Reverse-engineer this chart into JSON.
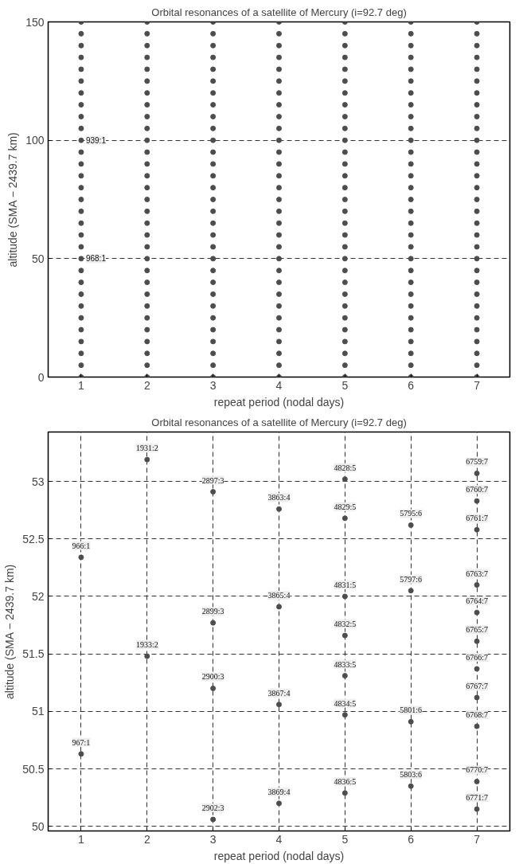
{
  "chart_data": [
    {
      "type": "scatter",
      "title": "Orbital resonances of a satellite of Mercury (i=92.7 deg)",
      "xlabel": "repeat period (nodal days)",
      "ylabel": "altitude (SMA − 2439.7 km)",
      "xlim": [
        0.5,
        7.5
      ],
      "ylim": [
        0,
        150
      ],
      "xticks": [
        1,
        2,
        3,
        4,
        5,
        6,
        7
      ],
      "yticks": [
        0,
        50,
        100,
        150
      ],
      "grid": "y",
      "marker": "circle",
      "series": [
        {
          "color": "#4d4d4d",
          "x": [
            1,
            1,
            1,
            1,
            1,
            1,
            1,
            1,
            1,
            1,
            1,
            1,
            1,
            1,
            1,
            1,
            1,
            1,
            1,
            1,
            1,
            1,
            1,
            1,
            1,
            1,
            1,
            1,
            1,
            1,
            1
          ],
          "values": [
            0,
            5,
            10,
            15,
            20,
            25,
            30,
            35,
            40,
            45,
            50,
            55,
            60,
            65,
            70,
            75,
            80,
            85,
            90,
            95,
            100,
            105,
            110,
            115,
            120,
            125,
            130,
            135,
            140,
            145,
            150
          ]
        },
        {
          "color": "#4d4d4d",
          "x": [
            2,
            2,
            2,
            2,
            2,
            2,
            2,
            2,
            2,
            2,
            2,
            2,
            2,
            2,
            2,
            2,
            2,
            2,
            2,
            2,
            2,
            2,
            2,
            2,
            2,
            2,
            2,
            2,
            2,
            2,
            2
          ],
          "values": [
            0,
            5,
            10,
            15,
            20,
            25,
            30,
            35,
            40,
            45,
            50,
            55,
            60,
            65,
            70,
            75,
            80,
            85,
            90,
            95,
            100,
            105,
            110,
            115,
            120,
            125,
            130,
            135,
            140,
            145,
            150
          ]
        },
        {
          "color": "#4d4d4d",
          "x": [
            3,
            3,
            3,
            3,
            3,
            3,
            3,
            3,
            3,
            3,
            3,
            3,
            3,
            3,
            3,
            3,
            3,
            3,
            3,
            3,
            3,
            3,
            3,
            3,
            3,
            3,
            3,
            3,
            3,
            3,
            3
          ],
          "values": [
            0,
            5,
            10,
            15,
            20,
            25,
            30,
            35,
            40,
            45,
            50,
            55,
            60,
            65,
            70,
            75,
            80,
            85,
            90,
            95,
            100,
            105,
            110,
            115,
            120,
            125,
            130,
            135,
            140,
            145,
            150
          ]
        },
        {
          "color": "#4d4d4d",
          "x": [
            4,
            4,
            4,
            4,
            4,
            4,
            4,
            4,
            4,
            4,
            4,
            4,
            4,
            4,
            4,
            4,
            4,
            4,
            4,
            4,
            4,
            4,
            4,
            4,
            4,
            4,
            4,
            4,
            4,
            4,
            4
          ],
          "values": [
            0,
            5,
            10,
            15,
            20,
            25,
            30,
            35,
            40,
            45,
            50,
            55,
            60,
            65,
            70,
            75,
            80,
            85,
            90,
            95,
            100,
            105,
            110,
            115,
            120,
            125,
            130,
            135,
            140,
            145,
            150
          ]
        },
        {
          "color": "#4d4d4d",
          "x": [
            5,
            5,
            5,
            5,
            5,
            5,
            5,
            5,
            5,
            5,
            5,
            5,
            5,
            5,
            5,
            5,
            5,
            5,
            5,
            5,
            5,
            5,
            5,
            5,
            5,
            5,
            5,
            5,
            5,
            5,
            5
          ],
          "values": [
            0,
            5,
            10,
            15,
            20,
            25,
            30,
            35,
            40,
            45,
            50,
            55,
            60,
            65,
            70,
            75,
            80,
            85,
            90,
            95,
            100,
            105,
            110,
            115,
            120,
            125,
            130,
            135,
            140,
            145,
            150
          ]
        },
        {
          "color": "#4d4d4d",
          "x": [
            6,
            6,
            6,
            6,
            6,
            6,
            6,
            6,
            6,
            6,
            6,
            6,
            6,
            6,
            6,
            6,
            6,
            6,
            6,
            6,
            6,
            6,
            6,
            6,
            6,
            6,
            6,
            6,
            6,
            6,
            6
          ],
          "values": [
            0,
            5,
            10,
            15,
            20,
            25,
            30,
            35,
            40,
            45,
            50,
            55,
            60,
            65,
            70,
            75,
            80,
            85,
            90,
            95,
            100,
            105,
            110,
            115,
            120,
            125,
            130,
            135,
            140,
            145,
            150
          ]
        },
        {
          "color": "#4d4d4d",
          "x": [
            7,
            7,
            7,
            7,
            7,
            7,
            7,
            7,
            7,
            7,
            7,
            7,
            7,
            7,
            7,
            7,
            7,
            7,
            7,
            7,
            7,
            7,
            7,
            7,
            7,
            7,
            7,
            7,
            7,
            7,
            7
          ],
          "values": [
            0,
            5,
            10,
            15,
            20,
            25,
            30,
            35,
            40,
            45,
            50,
            55,
            60,
            65,
            70,
            75,
            80,
            85,
            90,
            95,
            100,
            105,
            110,
            115,
            120,
            125,
            130,
            135,
            140,
            145,
            150
          ]
        }
      ],
      "annotations": [
        {
          "text": "939:1",
          "x": 1,
          "y": 100
        },
        {
          "text": "968:1",
          "x": 1,
          "y": 50
        }
      ]
    },
    {
      "type": "scatter",
      "title": "Orbital resonances of a satellite of Mercury (i=92.7 deg)",
      "xlabel": "repeat period (nodal days)",
      "ylabel": "altitude (SMA − 2439.7 km)",
      "xlim": [
        0.5,
        7.5
      ],
      "ylim": [
        49.96,
        53.43
      ],
      "xticks": [
        1,
        2,
        3,
        4,
        5,
        6,
        7
      ],
      "yticks": [
        50,
        50.5,
        51,
        51.5,
        52,
        52.5,
        53
      ],
      "grid": true,
      "marker": "circle",
      "series": [
        {
          "color": "#4d4d4d",
          "x": [
            1,
            1,
            2,
            2,
            3,
            3,
            3,
            3,
            4,
            4,
            4,
            4,
            5,
            5,
            5,
            5,
            5,
            5,
            5,
            6,
            6,
            6,
            6,
            7,
            7,
            7,
            7,
            7,
            7,
            7,
            7,
            7,
            7,
            7
          ],
          "values": [
            52.34,
            50.63,
            53.19,
            51.48,
            52.91,
            51.77,
            51.2,
            50.06,
            52.76,
            51.91,
            51.06,
            50.2,
            53.02,
            52.68,
            52.0,
            51.66,
            51.31,
            50.97,
            50.29,
            52.62,
            52.05,
            50.91,
            50.35,
            53.07,
            52.83,
            52.58,
            52.1,
            51.86,
            51.61,
            51.37,
            51.12,
            50.87,
            50.39,
            50.15
          ],
          "value_labels": [
            "966:1",
            "967:1",
            "1931:2",
            "1933:2",
            "2897:3",
            "2899:3",
            "2900:3",
            "2902:3",
            "3863:4",
            "3865:4",
            "3867:4",
            "3869:4",
            "4828:5",
            "4829:5",
            "4831:5",
            "4832:5",
            "4833:5",
            "4834:5",
            "4836:5",
            "5795:6",
            "5797:6",
            "5801:6",
            "5803:6",
            "6759:7",
            "6760:7",
            "6761:7",
            "6763:7",
            "6764:7",
            "6765:7",
            "6766:7",
            "6767:7",
            "6768:7",
            "6770:7",
            "6771:7"
          ]
        }
      ]
    }
  ]
}
